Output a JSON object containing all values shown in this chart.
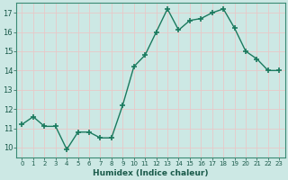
{
  "x": [
    0,
    1,
    2,
    3,
    4,
    5,
    6,
    7,
    8,
    9,
    10,
    11,
    12,
    13,
    14,
    15,
    16,
    17,
    18,
    19,
    20,
    21,
    22,
    23
  ],
  "y": [
    11.2,
    11.6,
    11.1,
    11.1,
    9.9,
    10.8,
    10.8,
    10.5,
    10.5,
    12.2,
    14.2,
    14.8,
    16.0,
    17.2,
    16.1,
    16.6,
    16.7,
    17.0,
    17.2,
    16.2,
    15.0,
    14.6,
    14.0,
    14.0
  ],
  "xlabel": "Humidex (Indice chaleur)",
  "ylim": [
    9.5,
    17.5
  ],
  "xlim": [
    -0.5,
    23.5
  ],
  "yticks": [
    10,
    11,
    12,
    13,
    14,
    15,
    16,
    17
  ],
  "xticks": [
    0,
    1,
    2,
    3,
    4,
    5,
    6,
    7,
    8,
    9,
    10,
    11,
    12,
    13,
    14,
    15,
    16,
    17,
    18,
    19,
    20,
    21,
    22,
    23
  ],
  "xtick_labels": [
    "0",
    "1",
    "2",
    "3",
    "4",
    "5",
    "6",
    "7",
    "8",
    "9",
    "10",
    "11",
    "12",
    "13",
    "14",
    "15",
    "16",
    "17",
    "18",
    "19",
    "20",
    "21",
    "22",
    "23"
  ],
  "line_color": "#1a7a5e",
  "marker_color": "#1a7a5e",
  "bg_color": "#cce8e4",
  "grid_color": "#e8c8c8",
  "axis_color": "#3a8a74",
  "tick_color": "#1a5a4a",
  "xlabel_color": "#1a5a4a"
}
